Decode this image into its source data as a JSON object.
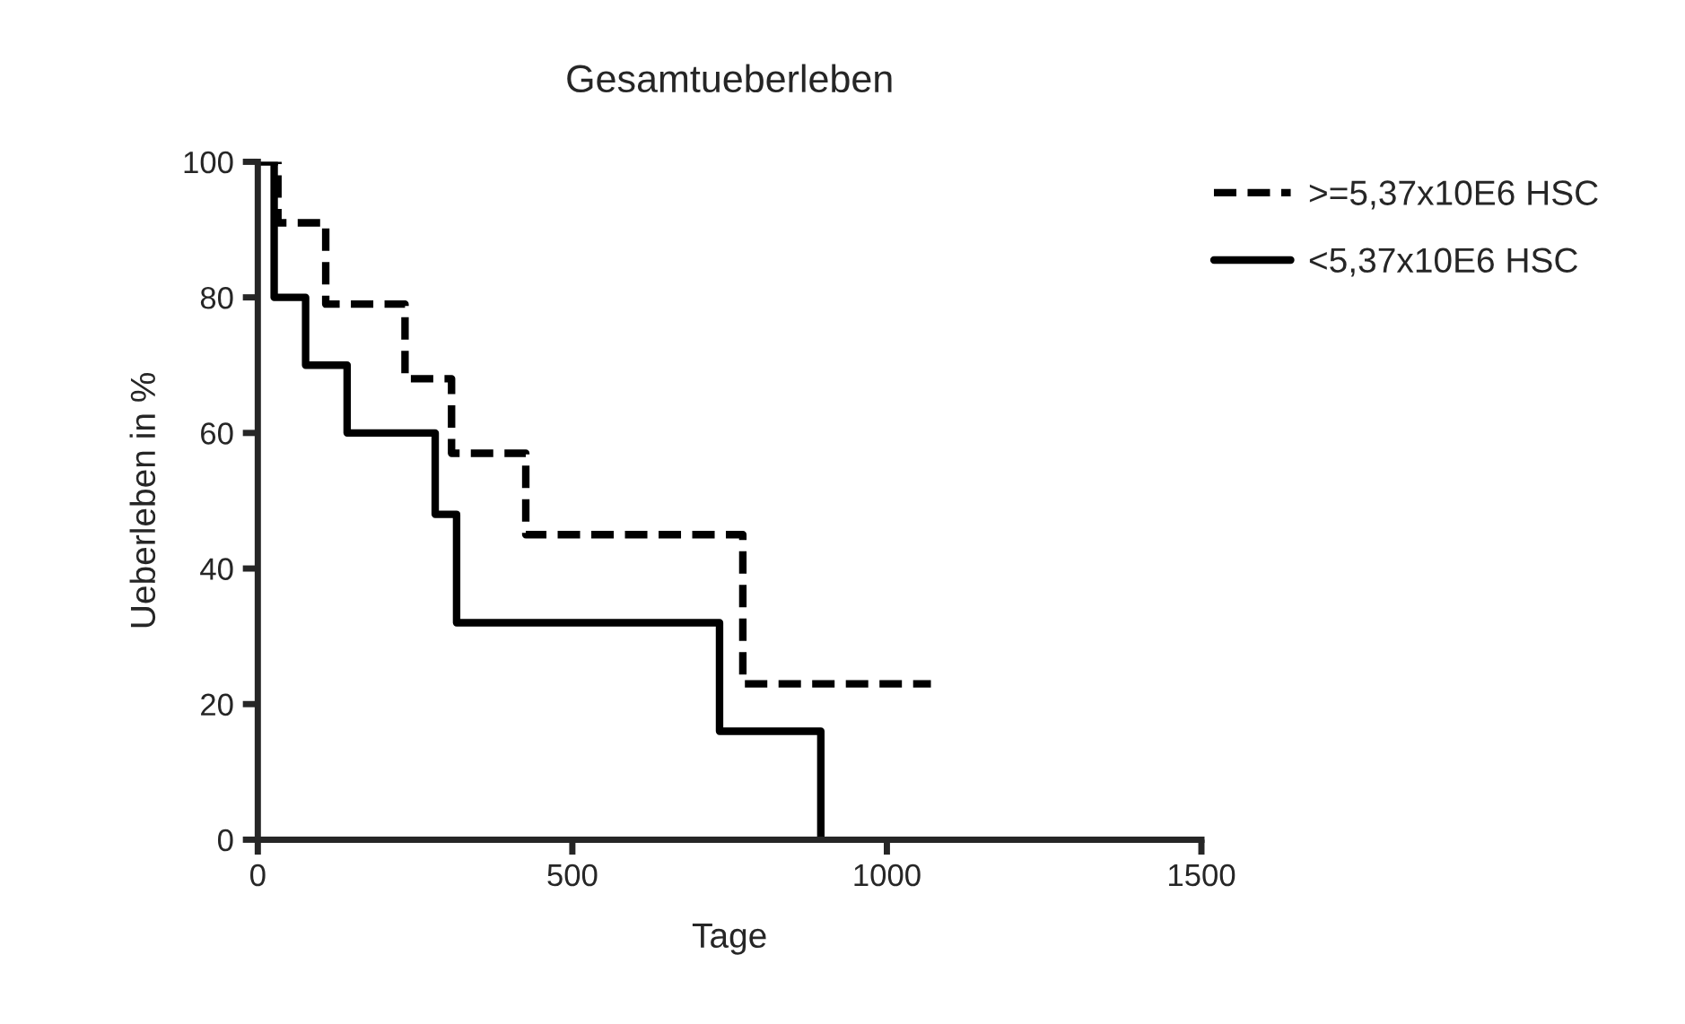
{
  "chart_data": {
    "type": "step",
    "title": "Gesamtueberleben",
    "xlabel": "Tage",
    "ylabel": "Ueberleben in %",
    "xlim": [
      0,
      1500
    ],
    "ylim": [
      0,
      100
    ],
    "xticks": [
      0,
      500,
      1000,
      1500
    ],
    "yticks": [
      0,
      20,
      40,
      60,
      80,
      100
    ],
    "grid": false,
    "legend": "top right",
    "series": [
      {
        "name": ">=5,37x10E6 HSC",
        "color": "#000000",
        "line_style": "dashed",
        "x": [
          0,
          32,
          108,
          234,
          308,
          426,
          771,
          1070
        ],
        "values": [
          100,
          91,
          79,
          68,
          57,
          45,
          23,
          23
        ]
      },
      {
        "name": "<5,37x10E6 HSC",
        "color": "#000000",
        "line_style": "solid",
        "x": [
          0,
          26,
          76,
          142,
          282,
          316,
          734,
          895
        ],
        "values": [
          100,
          80,
          70,
          60,
          48,
          32,
          16,
          0
        ]
      }
    ]
  }
}
